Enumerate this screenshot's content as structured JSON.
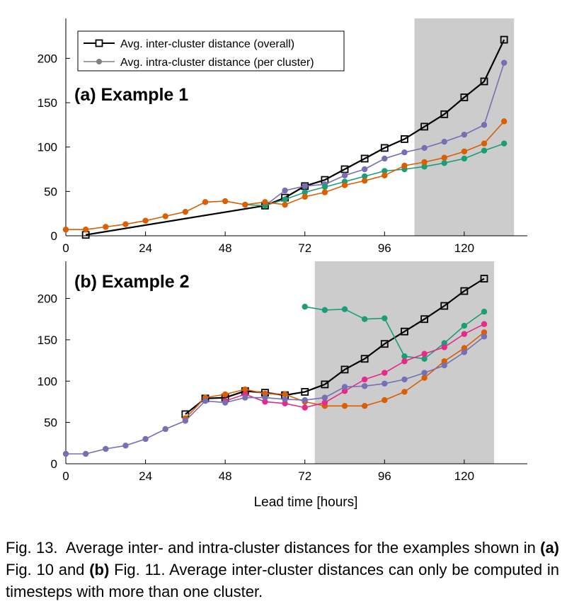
{
  "chart_data": [
    {
      "type": "line",
      "title": "(a) Example 1",
      "xlabel": "",
      "ylabel": "",
      "xlim": [
        0,
        139
      ],
      "ylim": [
        0,
        245
      ],
      "xticks": [
        0,
        24,
        48,
        72,
        96,
        120
      ],
      "yticks": [
        0,
        50,
        100,
        150,
        200
      ],
      "grid": false,
      "legend": {
        "position": "top-left",
        "entries": [
          {
            "label": "Avg. inter-cluster distance (overall)",
            "color": "#000000",
            "marker": "open-square"
          },
          {
            "label": "Avg. intra-cluster distance (per cluster)",
            "color": "#808080",
            "marker": "filled-circle"
          }
        ]
      },
      "shaded_region": {
        "x": [
          105,
          135
        ],
        "color": "#cccccc"
      },
      "series": [
        {
          "role": "inter",
          "color": "#000000",
          "marker": "square",
          "x": [
            6,
            60,
            66,
            72,
            78,
            84,
            90,
            96,
            102,
            108,
            114,
            120,
            126,
            132
          ],
          "y": [
            1,
            34,
            43,
            56,
            63,
            75,
            87,
            99,
            109,
            123,
            137,
            156,
            174,
            221
          ]
        },
        {
          "role": "intra",
          "color": "#7570b3",
          "marker": "circle",
          "x": [
            60,
            66,
            72,
            78,
            84,
            90,
            96,
            102,
            108,
            114,
            120,
            126,
            132
          ],
          "y": [
            34,
            51,
            56,
            58,
            68,
            75,
            87,
            94,
            99,
            106,
            114,
            125,
            195
          ]
        },
        {
          "role": "intra",
          "color": "#1b9e77",
          "marker": "circle",
          "x": [
            54,
            60,
            66,
            72,
            78,
            84,
            90,
            96,
            102,
            108,
            114,
            120,
            126,
            132
          ],
          "y": [
            35,
            34,
            41,
            49,
            55,
            61,
            67,
            73,
            75,
            78,
            82,
            87,
            96,
            104
          ]
        },
        {
          "role": "intra",
          "color": "#d95f02",
          "marker": "circle",
          "x": [
            0,
            6,
            12,
            18,
            24,
            30,
            36,
            42,
            48,
            54,
            60,
            66,
            72,
            78,
            84,
            90,
            96,
            102,
            108,
            114,
            120,
            126,
            132
          ],
          "y": [
            7,
            7,
            10,
            13,
            17,
            22,
            27,
            38,
            39,
            35,
            38,
            35,
            44,
            49,
            57,
            62,
            68,
            79,
            83,
            88,
            95,
            104,
            129
          ]
        }
      ]
    },
    {
      "type": "line",
      "title": "(b) Example 2",
      "xlabel": "Lead time [hours]",
      "ylabel": "",
      "xlim": [
        0,
        139
      ],
      "ylim": [
        0,
        245
      ],
      "xticks": [
        0,
        24,
        48,
        72,
        96,
        120
      ],
      "yticks": [
        0,
        50,
        100,
        150,
        200
      ],
      "grid": false,
      "shaded_region": {
        "x": [
          75,
          129
        ],
        "color": "#cccccc"
      },
      "series": [
        {
          "role": "inter",
          "color": "#000000",
          "marker": "square",
          "x": [
            36,
            42,
            48,
            54,
            60,
            66,
            72,
            78,
            84,
            90,
            96,
            102,
            108,
            114,
            120,
            126
          ],
          "y": [
            60,
            79,
            80,
            88,
            86,
            83,
            87,
            96,
            114,
            127,
            145,
            160,
            175,
            191,
            209,
            224
          ]
        },
        {
          "role": "intra",
          "color": "#1b9e77",
          "marker": "circle",
          "x": [
            72,
            78,
            84,
            90,
            96,
            102,
            108,
            114,
            120,
            126
          ],
          "y": [
            190,
            186,
            187,
            175,
            176,
            130,
            127,
            146,
            167,
            184
          ]
        },
        {
          "role": "intra",
          "color": "#d95f02",
          "marker": "circle",
          "x": [
            36,
            42,
            48,
            54,
            60,
            66,
            72,
            78,
            84,
            90,
            96,
            102,
            108,
            114,
            120,
            126
          ],
          "y": [
            55,
            80,
            84,
            90,
            85,
            84,
            75,
            70,
            70,
            70,
            77,
            87,
            104,
            124,
            140,
            159
          ]
        },
        {
          "role": "intra",
          "color": "#e7298a",
          "marker": "circle",
          "x": [
            48,
            54,
            60,
            66,
            72,
            78,
            84,
            90,
            96,
            102,
            108,
            114,
            120,
            126
          ],
          "y": [
            76,
            84,
            75,
            73,
            68,
            74,
            88,
            102,
            110,
            124,
            133,
            141,
            157,
            169
          ]
        },
        {
          "role": "intra",
          "color": "#7570b3",
          "marker": "circle",
          "x": [
            0,
            6,
            12,
            18,
            24,
            30,
            36,
            42,
            48,
            54,
            60,
            66,
            72,
            78,
            84,
            90,
            96,
            102,
            108,
            114,
            120,
            126
          ],
          "y": [
            12,
            12,
            18,
            22,
            30,
            42,
            52,
            76,
            74,
            80,
            80,
            78,
            77,
            80,
            93,
            94,
            97,
            102,
            110,
            119,
            135,
            154
          ]
        }
      ]
    }
  ],
  "caption": {
    "lead": "Fig. 13.",
    "part1": "Average inter- and intra-cluster distances for the examples shown in",
    "ref_a": "(a)",
    "part2": "Fig. 10 and",
    "ref_b": "(b)",
    "part3": "Fig. 11. Average inter-cluster distances can only be computed in timesteps with more than one cluster."
  }
}
